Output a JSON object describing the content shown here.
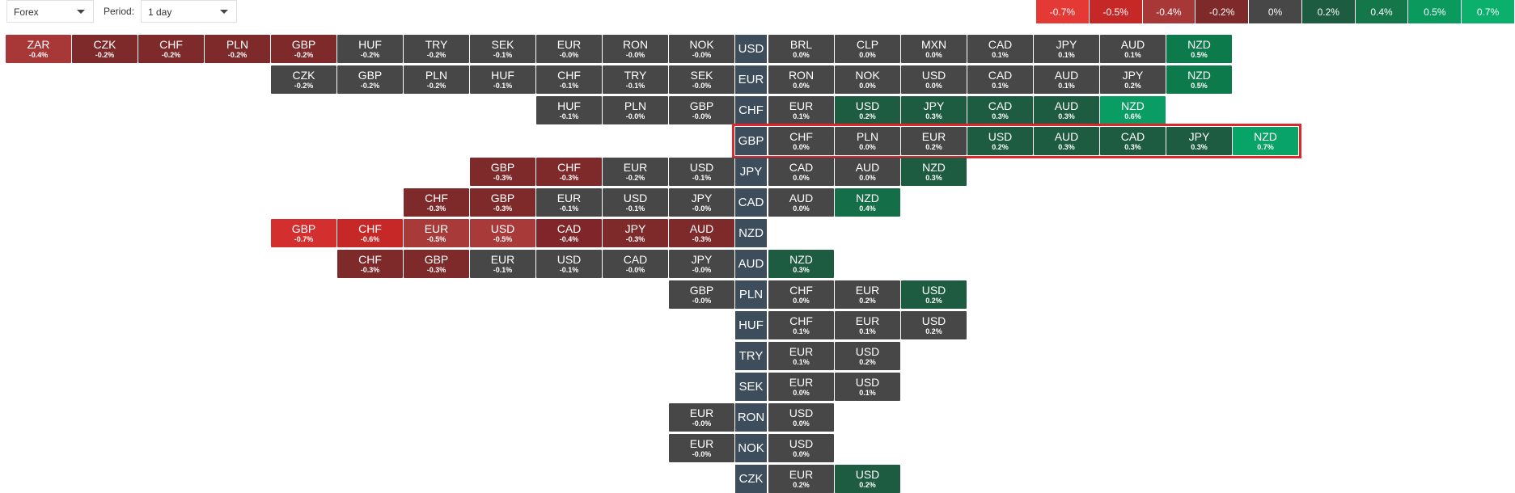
{
  "toolbar": {
    "market": "Forex",
    "period_label": "Period:",
    "period": "1 day"
  },
  "legend": [
    {
      "label": "-0.7%",
      "color": "#e53935"
    },
    {
      "label": "-0.5%",
      "color": "#c62828"
    },
    {
      "label": "-0.4%",
      "color": "#a83838"
    },
    {
      "label": "-0.2%",
      "color": "#7f2a2a"
    },
    {
      "label": "0%",
      "color": "#474747"
    },
    {
      "label": "0.2%",
      "color": "#1d5c40"
    },
    {
      "label": "0.4%",
      "color": "#137749"
    },
    {
      "label": "0.5%",
      "color": "#0b9a5e"
    },
    {
      "label": "0.7%",
      "color": "#0ab06c"
    }
  ],
  "rows": [
    {
      "base": "USD",
      "highlighted": false,
      "left": [
        {
          "code": "ZAR",
          "change": "-0.4%",
          "color": "#a83838"
        },
        {
          "code": "CZK",
          "change": "-0.2%",
          "color": "#7f2a2a"
        },
        {
          "code": "CHF",
          "change": "-0.2%",
          "color": "#7f2a2a"
        },
        {
          "code": "PLN",
          "change": "-0.2%",
          "color": "#7f2a2a"
        },
        {
          "code": "GBP",
          "change": "-0.2%",
          "color": "#7f2a2a"
        },
        {
          "code": "HUF",
          "change": "-0.2%",
          "color": "#474747"
        },
        {
          "code": "TRY",
          "change": "-0.2%",
          "color": "#474747"
        },
        {
          "code": "SEK",
          "change": "-0.1%",
          "color": "#474747"
        },
        {
          "code": "EUR",
          "change": "-0.0%",
          "color": "#474747"
        },
        {
          "code": "RON",
          "change": "-0.0%",
          "color": "#474747"
        },
        {
          "code": "NOK",
          "change": "-0.0%",
          "color": "#474747"
        }
      ],
      "right": [
        {
          "code": "BRL",
          "change": "0.0%",
          "color": "#474747"
        },
        {
          "code": "CLP",
          "change": "0.0%",
          "color": "#474747"
        },
        {
          "code": "MXN",
          "change": "0.0%",
          "color": "#474747"
        },
        {
          "code": "CAD",
          "change": "0.1%",
          "color": "#474747"
        },
        {
          "code": "JPY",
          "change": "0.1%",
          "color": "#474747"
        },
        {
          "code": "AUD",
          "change": "0.1%",
          "color": "#474747"
        },
        {
          "code": "NZD",
          "change": "0.5%",
          "color": "#0d7a4b"
        }
      ]
    },
    {
      "base": "EUR",
      "highlighted": false,
      "left": [
        {
          "code": "CZK",
          "change": "-0.2%",
          "color": "#474747"
        },
        {
          "code": "GBP",
          "change": "-0.2%",
          "color": "#474747"
        },
        {
          "code": "PLN",
          "change": "-0.2%",
          "color": "#474747"
        },
        {
          "code": "HUF",
          "change": "-0.1%",
          "color": "#474747"
        },
        {
          "code": "CHF",
          "change": "-0.1%",
          "color": "#474747"
        },
        {
          "code": "TRY",
          "change": "-0.1%",
          "color": "#474747"
        },
        {
          "code": "SEK",
          "change": "-0.0%",
          "color": "#474747"
        }
      ],
      "right": [
        {
          "code": "RON",
          "change": "0.0%",
          "color": "#474747"
        },
        {
          "code": "NOK",
          "change": "0.0%",
          "color": "#474747"
        },
        {
          "code": "USD",
          "change": "0.0%",
          "color": "#474747"
        },
        {
          "code": "CAD",
          "change": "0.1%",
          "color": "#474747"
        },
        {
          "code": "AUD",
          "change": "0.1%",
          "color": "#474747"
        },
        {
          "code": "JPY",
          "change": "0.2%",
          "color": "#474747"
        },
        {
          "code": "NZD",
          "change": "0.5%",
          "color": "#0d7a4b"
        }
      ]
    },
    {
      "base": "CHF",
      "highlighted": false,
      "left": [
        {
          "code": "HUF",
          "change": "-0.1%",
          "color": "#474747"
        },
        {
          "code": "PLN",
          "change": "-0.0%",
          "color": "#474747"
        },
        {
          "code": "GBP",
          "change": "-0.0%",
          "color": "#474747"
        }
      ],
      "right": [
        {
          "code": "EUR",
          "change": "0.1%",
          "color": "#474747"
        },
        {
          "code": "USD",
          "change": "0.2%",
          "color": "#1d5c40"
        },
        {
          "code": "JPY",
          "change": "0.3%",
          "color": "#1d5c40"
        },
        {
          "code": "CAD",
          "change": "0.3%",
          "color": "#1d5c40"
        },
        {
          "code": "AUD",
          "change": "0.3%",
          "color": "#1d5c40"
        },
        {
          "code": "NZD",
          "change": "0.6%",
          "color": "#0a9d63"
        }
      ]
    },
    {
      "base": "GBP",
      "highlighted": true,
      "left": [],
      "right": [
        {
          "code": "CHF",
          "change": "0.0%",
          "color": "#474747"
        },
        {
          "code": "PLN",
          "change": "0.0%",
          "color": "#474747"
        },
        {
          "code": "EUR",
          "change": "0.2%",
          "color": "#474747"
        },
        {
          "code": "USD",
          "change": "0.2%",
          "color": "#1d5c40"
        },
        {
          "code": "AUD",
          "change": "0.3%",
          "color": "#1d5c40"
        },
        {
          "code": "CAD",
          "change": "0.3%",
          "color": "#1d5c40"
        },
        {
          "code": "JPY",
          "change": "0.3%",
          "color": "#1d5c40"
        },
        {
          "code": "NZD",
          "change": "0.7%",
          "color": "#08a467"
        }
      ]
    },
    {
      "base": "JPY",
      "highlighted": false,
      "left": [
        {
          "code": "GBP",
          "change": "-0.3%",
          "color": "#7f2a2a"
        },
        {
          "code": "CHF",
          "change": "-0.3%",
          "color": "#7f2a2a"
        },
        {
          "code": "EUR",
          "change": "-0.2%",
          "color": "#474747"
        },
        {
          "code": "USD",
          "change": "-0.1%",
          "color": "#474747"
        }
      ],
      "right": [
        {
          "code": "CAD",
          "change": "0.0%",
          "color": "#474747"
        },
        {
          "code": "AUD",
          "change": "0.0%",
          "color": "#474747"
        },
        {
          "code": "NZD",
          "change": "0.3%",
          "color": "#1d5c40"
        }
      ]
    },
    {
      "base": "CAD",
      "highlighted": false,
      "left": [
        {
          "code": "CHF",
          "change": "-0.3%",
          "color": "#7f2a2a"
        },
        {
          "code": "GBP",
          "change": "-0.3%",
          "color": "#7f2a2a"
        },
        {
          "code": "EUR",
          "change": "-0.1%",
          "color": "#474747"
        },
        {
          "code": "USD",
          "change": "-0.1%",
          "color": "#474747"
        },
        {
          "code": "JPY",
          "change": "-0.0%",
          "color": "#474747"
        }
      ],
      "right": [
        {
          "code": "AUD",
          "change": "0.0%",
          "color": "#474747"
        },
        {
          "code": "NZD",
          "change": "0.4%",
          "color": "#146e47"
        }
      ]
    },
    {
      "base": "NZD",
      "highlighted": false,
      "left": [
        {
          "code": "GBP",
          "change": "-0.7%",
          "color": "#d32f2f"
        },
        {
          "code": "CHF",
          "change": "-0.6%",
          "color": "#c62828"
        },
        {
          "code": "EUR",
          "change": "-0.5%",
          "color": "#a83a3a"
        },
        {
          "code": "USD",
          "change": "-0.5%",
          "color": "#a83a3a"
        },
        {
          "code": "CAD",
          "change": "-0.4%",
          "color": "#80262a"
        },
        {
          "code": "JPY",
          "change": "-0.3%",
          "color": "#7f2a2a"
        },
        {
          "code": "AUD",
          "change": "-0.3%",
          "color": "#7f2a2a"
        }
      ],
      "right": []
    },
    {
      "base": "AUD",
      "highlighted": false,
      "left": [
        {
          "code": "CHF",
          "change": "-0.3%",
          "color": "#7f2a2a"
        },
        {
          "code": "GBP",
          "change": "-0.3%",
          "color": "#7f2a2a"
        },
        {
          "code": "EUR",
          "change": "-0.1%",
          "color": "#474747"
        },
        {
          "code": "USD",
          "change": "-0.1%",
          "color": "#474747"
        },
        {
          "code": "CAD",
          "change": "-0.0%",
          "color": "#474747"
        },
        {
          "code": "JPY",
          "change": "-0.0%",
          "color": "#474747"
        }
      ],
      "right": [
        {
          "code": "NZD",
          "change": "0.3%",
          "color": "#1d5c40"
        }
      ]
    },
    {
      "base": "PLN",
      "highlighted": false,
      "left": [
        {
          "code": "GBP",
          "change": "-0.0%",
          "color": "#474747"
        }
      ],
      "right": [
        {
          "code": "CHF",
          "change": "0.0%",
          "color": "#474747"
        },
        {
          "code": "EUR",
          "change": "0.2%",
          "color": "#474747"
        },
        {
          "code": "USD",
          "change": "0.2%",
          "color": "#1d5c40"
        }
      ]
    },
    {
      "base": "HUF",
      "highlighted": false,
      "left": [],
      "right": [
        {
          "code": "CHF",
          "change": "0.1%",
          "color": "#474747"
        },
        {
          "code": "EUR",
          "change": "0.1%",
          "color": "#474747"
        },
        {
          "code": "USD",
          "change": "0.2%",
          "color": "#474747"
        }
      ]
    },
    {
      "base": "TRY",
      "highlighted": false,
      "left": [],
      "right": [
        {
          "code": "EUR",
          "change": "0.1%",
          "color": "#474747"
        },
        {
          "code": "USD",
          "change": "0.2%",
          "color": "#474747"
        }
      ]
    },
    {
      "base": "SEK",
      "highlighted": false,
      "left": [],
      "right": [
        {
          "code": "EUR",
          "change": "0.0%",
          "color": "#474747"
        },
        {
          "code": "USD",
          "change": "0.1%",
          "color": "#474747"
        }
      ]
    },
    {
      "base": "RON",
      "highlighted": false,
      "left": [
        {
          "code": "EUR",
          "change": "-0.0%",
          "color": "#474747"
        }
      ],
      "right": [
        {
          "code": "USD",
          "change": "0.0%",
          "color": "#474747"
        }
      ]
    },
    {
      "base": "NOK",
      "highlighted": false,
      "left": [
        {
          "code": "EUR",
          "change": "-0.0%",
          "color": "#474747"
        }
      ],
      "right": [
        {
          "code": "USD",
          "change": "0.0%",
          "color": "#474747"
        }
      ]
    },
    {
      "base": "CZK",
      "highlighted": false,
      "left": [],
      "right": [
        {
          "code": "EUR",
          "change": "0.2%",
          "color": "#474747"
        },
        {
          "code": "USD",
          "change": "0.2%",
          "color": "#1d5c40"
        }
      ]
    }
  ]
}
